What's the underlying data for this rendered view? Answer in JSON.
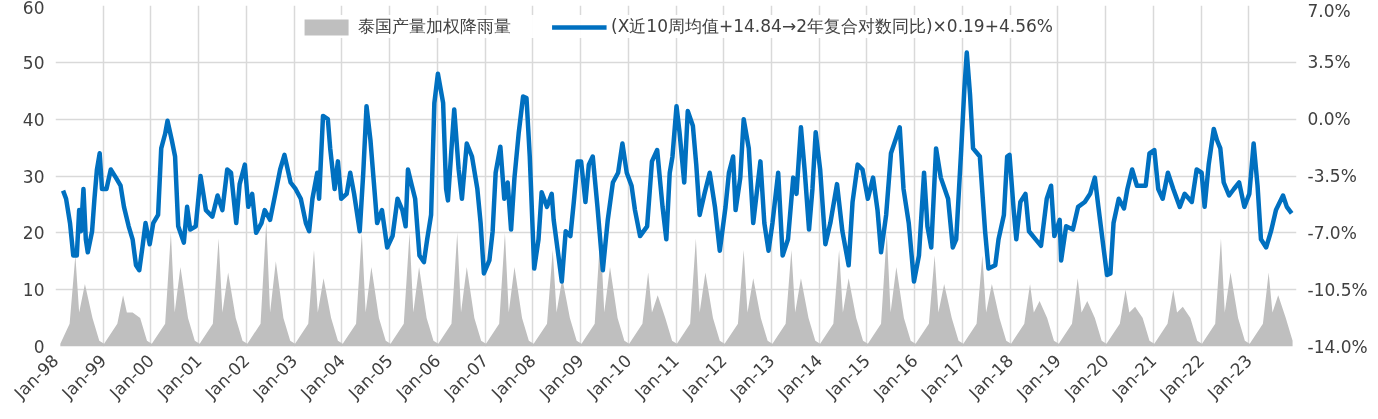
{
  "chart_data": {
    "type": "line",
    "xlim": [
      "1998-01-01",
      "2024-01-01"
    ],
    "xticks": [
      {
        "value": "1998-01",
        "label": "Jan-98"
      },
      {
        "value": "1999-01",
        "label": "Jan-99"
      },
      {
        "value": "2000-01",
        "label": "Jan-00"
      },
      {
        "value": "2001-01",
        "label": "Jan-01"
      },
      {
        "value": "2002-01",
        "label": "Jan-02"
      },
      {
        "value": "2003-01",
        "label": "Jan-03"
      },
      {
        "value": "2004-01",
        "label": "Jan-04"
      },
      {
        "value": "2005-01",
        "label": "Jan-05"
      },
      {
        "value": "2006-01",
        "label": "Jan-06"
      },
      {
        "value": "2007-01",
        "label": "Jan-07"
      },
      {
        "value": "2008-01",
        "label": "Jan-08"
      },
      {
        "value": "2009-01",
        "label": "Jan-09"
      },
      {
        "value": "2010-01",
        "label": "Jan-10"
      },
      {
        "value": "2011-01",
        "label": "Jan-11"
      },
      {
        "value": "2012-01",
        "label": "Jan-12"
      },
      {
        "value": "2013-01",
        "label": "Jan-13"
      },
      {
        "value": "2014-01",
        "label": "Jan-14"
      },
      {
        "value": "2015-01",
        "label": "Jan-15"
      },
      {
        "value": "2016-01",
        "label": "Jan-16"
      },
      {
        "value": "2017-01",
        "label": "Jan-17"
      },
      {
        "value": "2018-01",
        "label": "Jan-18"
      },
      {
        "value": "2019-01",
        "label": "Jan-19"
      },
      {
        "value": "2020-01",
        "label": "Jan-20"
      },
      {
        "value": "2021-01",
        "label": "Jan-21"
      },
      {
        "value": "2022-01",
        "label": "Jan-22"
      },
      {
        "value": "2023-01",
        "label": "Jan-23"
      }
    ],
    "ylim": [
      0,
      60
    ],
    "yticks": [
      0,
      10,
      20,
      30,
      40,
      50,
      60
    ],
    "y2lim": [
      -14,
      7
    ],
    "y2ticks": [
      {
        "value": -14,
        "label": "-14.0%"
      },
      {
        "value": -10.5,
        "label": "-10.5%"
      },
      {
        "value": -7,
        "label": "-7.0%"
      },
      {
        "value": -3.5,
        "label": "-3.5%"
      },
      {
        "value": 0,
        "label": "0.0%"
      },
      {
        "value": 3.5,
        "label": "3.5%"
      },
      {
        "value": 7,
        "label": "7.0%"
      }
    ],
    "grid": true,
    "legend": "top",
    "series": [
      {
        "name": "泰国产量加权降雨量",
        "type": "area",
        "color": "#bfbfbf",
        "x": [
          "1998-02-07",
          "1998-04-19",
          "1998-06-02",
          "1998-07-01",
          "1998-08-14",
          "1998-10-11",
          "1998-12-02",
          "1999-01-08",
          "1999-04-19",
          "1999-06-02",
          "1999-07-01",
          "1999-08-14",
          "1999-10-11",
          "1999-12-02",
          "2000-01-08",
          "2000-04-19",
          "2000-06-02",
          "2000-07-01",
          "2000-08-14",
          "2000-10-11",
          "2000-12-02",
          "2001-01-08",
          "2001-04-19",
          "2001-06-02",
          "2001-07-01",
          "2001-08-14",
          "2001-10-11",
          "2001-12-02",
          "2002-01-08",
          "2002-04-19",
          "2002-06-02",
          "2002-07-01",
          "2002-08-14",
          "2002-10-11",
          "2002-12-02",
          "2003-01-08",
          "2003-04-19",
          "2003-06-02",
          "2003-07-01",
          "2003-08-14",
          "2003-10-11",
          "2003-12-02",
          "2004-01-08",
          "2004-04-19",
          "2004-06-02",
          "2004-07-01",
          "2004-08-14",
          "2004-10-11",
          "2004-12-02",
          "2005-01-08",
          "2005-04-19",
          "2005-06-02",
          "2005-07-01",
          "2005-08-14",
          "2005-10-11",
          "2005-12-02",
          "2006-01-08",
          "2006-04-19",
          "2006-06-02",
          "2006-07-01",
          "2006-08-14",
          "2006-10-11",
          "2006-12-02",
          "2007-01-08",
          "2007-04-19",
          "2007-06-02",
          "2007-07-01",
          "2007-08-14",
          "2007-10-11",
          "2007-12-02",
          "2008-01-08",
          "2008-04-19",
          "2008-06-02",
          "2008-07-01",
          "2008-08-14",
          "2008-10-11",
          "2008-12-02",
          "2009-01-08",
          "2009-04-19",
          "2009-06-02",
          "2009-07-01",
          "2009-08-14",
          "2009-10-11",
          "2009-12-02",
          "2010-01-08",
          "2010-04-19",
          "2010-06-02",
          "2010-07-01",
          "2010-08-14",
          "2010-10-11",
          "2010-12-02",
          "2011-01-08",
          "2011-04-19",
          "2011-06-02",
          "2011-07-01",
          "2011-08-14",
          "2011-10-11",
          "2011-12-02",
          "2012-01-08",
          "2012-04-19",
          "2012-06-02",
          "2012-07-01",
          "2012-08-14",
          "2012-10-11",
          "2012-12-02",
          "2013-01-08",
          "2013-04-19",
          "2013-06-02",
          "2013-07-01",
          "2013-08-14",
          "2013-10-11",
          "2013-12-02",
          "2014-01-08",
          "2014-04-19",
          "2014-06-02",
          "2014-07-01",
          "2014-08-14",
          "2014-10-11",
          "2014-12-02",
          "2015-01-08",
          "2015-04-19",
          "2015-06-02",
          "2015-07-01",
          "2015-08-14",
          "2015-10-11",
          "2015-12-02",
          "2016-01-08",
          "2016-04-19",
          "2016-06-02",
          "2016-07-01",
          "2016-08-14",
          "2016-10-11",
          "2016-12-02",
          "2017-01-08",
          "2017-04-19",
          "2017-06-02",
          "2017-07-01",
          "2017-08-14",
          "2017-10-11",
          "2017-12-02",
          "2018-01-08",
          "2018-04-19",
          "2018-06-02",
          "2018-07-01",
          "2018-08-14",
          "2018-10-11",
          "2018-12-02",
          "2019-01-08",
          "2019-04-19",
          "2019-06-02",
          "2019-07-01",
          "2019-08-14",
          "2019-10-11",
          "2019-12-02",
          "2020-01-08",
          "2020-04-19",
          "2020-06-02",
          "2020-07-01",
          "2020-08-14",
          "2020-10-11",
          "2020-12-02",
          "2021-01-08",
          "2021-04-19",
          "2021-06-02",
          "2021-07-01",
          "2021-08-14",
          "2021-10-11",
          "2021-12-02",
          "2022-01-08",
          "2022-04-19",
          "2022-06-02",
          "2022-07-01",
          "2022-08-14",
          "2022-10-11",
          "2022-12-02",
          "2023-01-08",
          "2023-04-19",
          "2023-06-02",
          "2023-07-01",
          "2023-08-14",
          "2023-10-11",
          "2023-12-02"
        ],
        "values": [
          0.5,
          4,
          16,
          6,
          11,
          5,
          1,
          0.5,
          4,
          9,
          6,
          6,
          5,
          1,
          0.5,
          4,
          20,
          6,
          14,
          5,
          1,
          0.5,
          4,
          19,
          6,
          13,
          5,
          1,
          0.5,
          4,
          22,
          6,
          15,
          5,
          1,
          0.5,
          4,
          17,
          6,
          12,
          5,
          1,
          0.5,
          4,
          20,
          6,
          14,
          5,
          1,
          0.5,
          4,
          20,
          6,
          14,
          5,
          1,
          0.5,
          4,
          20,
          6,
          14,
          5,
          1,
          0.5,
          4,
          20,
          6,
          14,
          5,
          1,
          0.5,
          4,
          17,
          6,
          12,
          5,
          1,
          0.5,
          4,
          20,
          6,
          14,
          5,
          1,
          0.5,
          4,
          13,
          6,
          9,
          5,
          1,
          0.5,
          4,
          19,
          6,
          13,
          5,
          1,
          0.5,
          4,
          17,
          6,
          12,
          5,
          1,
          0.5,
          4,
          17,
          6,
          12,
          5,
          1,
          0.5,
          4,
          17,
          6,
          12,
          5,
          1,
          0.5,
          4,
          20,
          6,
          14,
          5,
          1,
          0.5,
          4,
          16,
          6,
          11,
          5,
          1,
          0.5,
          4,
          16,
          6,
          11,
          5,
          1,
          0.5,
          4,
          11,
          6,
          8,
          5,
          1,
          0.5,
          4,
          12,
          6,
          8,
          5,
          1,
          0.5,
          4,
          10,
          6,
          7,
          5,
          1,
          0.5,
          4,
          10,
          6,
          7,
          5,
          1,
          0.5,
          4,
          19,
          6,
          13,
          5,
          1,
          0.5,
          4,
          13,
          6,
          9,
          5,
          1
        ]
      },
      {
        "name": "(X近10周均值+14.84→2年复合对数同比)×0.19+4.56%",
        "axis": "y2",
        "color": "#0070c0",
        "x": [
          "1998-02-28",
          "1998-03-23",
          "1998-04-22",
          "1998-05-17",
          "1998-06-13",
          "1998-07-01",
          "1998-07-15",
          "1998-08-03",
          "1998-08-21",
          "1998-09-05",
          "1998-10-08",
          "1998-10-26",
          "1998-11-14",
          "1998-12-05",
          "1998-12-23",
          "1999-01-26",
          "1999-02-28",
          "1999-04-08",
          "1999-05-14",
          "1999-06-09",
          "1999-07-15",
          "1999-08-14",
          "1999-09-09",
          "1999-10-04",
          "1999-10-28",
          "1999-11-21",
          "1999-12-23",
          "2000-01-19",
          "2000-02-25",
          "2000-03-20",
          "2000-04-19",
          "2000-05-07",
          "2000-06-09",
          "2000-07-04",
          "2000-07-28",
          "2000-09-09",
          "2000-10-04",
          "2000-10-28",
          "2000-12-09",
          "2001-01-15",
          "2001-02-25",
          "2001-04-15",
          "2001-05-25",
          "2001-07-01",
          "2001-08-07",
          "2001-09-05",
          "2001-10-15",
          "2001-11-10",
          "2001-12-20",
          "2002-01-15",
          "2002-02-14",
          "2002-03-16",
          "2002-04-26",
          "2002-05-21",
          "2002-07-01",
          "2002-08-10",
          "2002-09-16",
          "2002-10-19",
          "2002-12-05",
          "2003-01-12",
          "2003-02-21",
          "2003-04-01",
          "2003-04-26",
          "2003-05-21",
          "2003-06-27",
          "2003-07-11",
          "2003-08-10",
          "2003-09-16",
          "2003-10-04",
          "2003-11-07",
          "2003-12-02",
          "2003-12-27",
          "2004-02-07",
          "2004-03-05",
          "2004-04-04",
          "2004-05-17",
          "2004-06-13",
          "2004-07-08",
          "2004-08-07",
          "2004-09-02",
          "2004-09-27",
          "2004-11-03",
          "2004-12-13",
          "2005-01-23",
          "2005-03-02",
          "2005-04-08",
          "2005-05-03",
          "2005-05-21",
          "2005-06-20",
          "2005-07-15",
          "2005-08-17",
          "2005-09-20",
          "2005-10-15",
          "2005-11-14",
          "2005-12-09",
          "2006-01-05",
          "2006-02-14",
          "2006-03-09",
          "2006-03-23",
          "2006-04-15",
          "2006-05-10",
          "2006-06-13",
          "2006-07-08",
          "2006-08-14",
          "2006-09-23",
          "2006-11-03",
          "2006-11-28",
          "2006-12-23",
          "2007-02-03",
          "2007-02-28",
          "2007-03-23",
          "2007-04-28",
          "2007-05-28",
          "2007-06-23",
          "2007-07-19",
          "2007-08-14",
          "2007-09-16",
          "2007-10-19",
          "2007-11-14",
          "2007-12-09",
          "2008-01-12",
          "2008-02-14",
          "2008-03-09",
          "2008-04-19",
          "2008-05-25",
          "2008-06-09",
          "2008-07-15",
          "2008-08-10",
          "2008-09-09",
          "2008-10-15",
          "2008-11-10",
          "2008-12-09",
          "2009-01-05",
          "2009-02-07",
          "2009-03-05",
          "2009-04-04",
          "2009-05-10",
          "2009-06-20",
          "2009-07-28",
          "2009-09-05",
          "2009-10-15",
          "2009-11-17",
          "2009-12-20",
          "2010-01-26",
          "2010-02-21",
          "2010-04-01",
          "2010-05-25",
          "2010-07-01",
          "2010-08-10",
          "2010-09-20",
          "2010-10-19",
          "2010-11-14",
          "2010-12-05",
          "2011-01-05",
          "2011-01-28",
          "2011-03-05",
          "2011-04-01",
          "2011-05-10",
          "2011-06-05",
          "2011-07-01",
          "2011-08-07",
          "2011-09-16",
          "2011-10-26",
          "2011-12-02",
          "2012-01-15",
          "2012-02-10",
          "2012-03-13",
          "2012-04-01",
          "2012-05-07",
          "2012-06-02",
          "2012-07-11",
          "2012-08-14",
          "2012-09-16",
          "2012-10-08",
          "2012-11-07",
          "2012-12-09",
          "2013-01-08",
          "2013-02-21",
          "2013-03-27",
          "2013-05-07",
          "2013-06-16",
          "2013-07-11",
          "2013-08-14",
          "2013-09-13",
          "2013-10-15",
          "2013-11-10",
          "2013-12-05",
          "2014-01-08",
          "2014-02-17",
          "2014-03-27",
          "2014-05-17",
          "2014-06-27",
          "2014-08-14",
          "2014-09-13",
          "2014-10-22",
          "2014-11-28",
          "2015-01-08",
          "2015-02-17",
          "2015-03-23",
          "2015-04-19",
          "2015-05-28",
          "2015-07-04",
          "2015-09-09",
          "2015-10-08",
          "2015-11-17",
          "2015-12-27",
          "2016-02-03",
          "2016-03-13",
          "2016-04-08",
          "2016-05-07",
          "2016-06-13",
          "2016-07-19",
          "2016-09-13",
          "2016-10-19",
          "2016-11-14",
          "2016-12-23",
          "2017-01-15",
          "2017-02-03",
          "2017-02-28",
          "2017-03-23",
          "2017-05-14",
          "2017-06-23",
          "2017-07-19",
          "2017-09-09",
          "2017-10-04",
          "2017-11-14",
          "2017-12-09",
          "2017-12-27",
          "2018-01-28",
          "2018-02-17",
          "2018-03-20",
          "2018-04-28",
          "2018-05-25",
          "2018-07-15",
          "2018-08-25",
          "2018-10-08",
          "2018-11-10",
          "2018-12-05",
          "2019-01-15",
          "2019-01-26",
          "2019-03-05",
          "2019-04-26",
          "2019-06-05",
          "2019-07-26",
          "2019-09-05",
          "2019-10-11",
          "2019-11-07",
          "2019-12-16",
          "2020-01-12",
          "2020-02-07",
          "2020-03-02",
          "2020-04-11",
          "2020-05-21",
          "2020-06-16",
          "2020-07-22",
          "2020-08-28",
          "2020-11-03",
          "2020-12-02",
          "2021-01-08",
          "2021-02-07",
          "2021-03-13",
          "2021-04-22",
          "2021-06-02",
          "2021-07-22",
          "2021-08-28",
          "2021-10-22",
          "2021-11-28",
          "2022-01-05",
          "2022-01-28",
          "2022-02-28",
          "2022-04-08",
          "2022-05-03",
          "2022-05-28",
          "2022-06-23",
          "2022-08-03",
          "2022-09-09",
          "2022-10-19",
          "2022-11-28",
          "2023-01-05",
          "2023-02-07",
          "2023-03-09",
          "2023-04-04",
          "2023-05-14",
          "2023-06-20",
          "2023-07-28",
          "2023-09-20",
          "2023-10-19",
          "2023-11-25"
        ],
        "values": [
          -4.4,
          -4.9,
          -6.4,
          -8.4,
          -8.4,
          -5.6,
          -6.9,
          -4.3,
          -7.4,
          -8.2,
          -6.9,
          -4.9,
          -3.1,
          -2.1,
          -4.3,
          -4.3,
          -3.1,
          -3.6,
          -4.1,
          -5.4,
          -6.6,
          -7.4,
          -9.0,
          -9.3,
          -7.9,
          -6.4,
          -7.7,
          -6.4,
          -5.9,
          -1.8,
          -0.9,
          -0.1,
          -1.3,
          -2.3,
          -6.6,
          -7.6,
          -5.4,
          -6.8,
          -6.6,
          -3.5,
          -5.6,
          -6.0,
          -4.7,
          -5.6,
          -3.1,
          -3.3,
          -6.4,
          -4.0,
          -2.8,
          -5.4,
          -4.6,
          -7.0,
          -6.4,
          -5.6,
          -6.2,
          -4.6,
          -3.1,
          -2.2,
          -3.9,
          -4.3,
          -4.9,
          -6.4,
          -6.9,
          -4.9,
          -3.3,
          -4.9,
          0.2,
          0.0,
          -1.8,
          -4.3,
          -2.6,
          -4.9,
          -4.6,
          -3.3,
          -4.6,
          -6.9,
          -3.3,
          0.8,
          -1.3,
          -3.9,
          -6.4,
          -5.6,
          -7.9,
          -7.2,
          -4.9,
          -5.6,
          -6.6,
          -3.1,
          -4.1,
          -4.9,
          -8.4,
          -8.8,
          -7.4,
          -5.9,
          1.0,
          2.8,
          1.0,
          -4.3,
          -5.0,
          -2.3,
          0.6,
          -3.1,
          -4.9,
          -1.5,
          -2.3,
          -4.3,
          -6.4,
          -9.5,
          -8.7,
          -6.9,
          -3.3,
          -1.7,
          -4.9,
          -3.9,
          -6.8,
          -3.6,
          -0.8,
          1.4,
          1.3,
          -2.3,
          -9.2,
          -7.4,
          -4.5,
          -5.4,
          -4.6,
          -6.2,
          -8.4,
          -10.0,
          -6.9,
          -7.2,
          -5.1,
          -2.6,
          -2.6,
          -5.1,
          -2.8,
          -2.3,
          -5.4,
          -9.3,
          -6.2,
          -3.9,
          -3.3,
          -1.5,
          -3.3,
          -4.1,
          -5.6,
          -7.2,
          -6.6,
          -2.6,
          -1.9,
          -5.4,
          -7.4,
          -3.3,
          -2.3,
          0.8,
          -0.8,
          -3.9,
          0.5,
          -0.4,
          -2.8,
          -5.9,
          -4.6,
          -3.3,
          -5.4,
          -8.1,
          -5.4,
          -3.3,
          -2.3,
          -5.6,
          -3.6,
          0.0,
          -1.8,
          -6.4,
          -4.1,
          -2.6,
          -6.4,
          -8.1,
          -6.4,
          -3.3,
          -8.4,
          -7.4,
          -3.6,
          -4.6,
          -0.5,
          -3.3,
          -6.8,
          -4.3,
          -0.8,
          -3.1,
          -7.7,
          -6.4,
          -4.0,
          -6.9,
          -9.0,
          -5.1,
          -2.8,
          -3.1,
          -4.9,
          -3.6,
          -5.6,
          -8.2,
          -5.9,
          -2.1,
          -0.5,
          -4.3,
          -6.4,
          -10.0,
          -8.4,
          -3.3,
          -6.6,
          -7.9,
          -1.8,
          -3.6,
          -4.9,
          -7.9,
          -7.4,
          -1.8,
          1.8,
          4.1,
          1.5,
          -1.8,
          -2.3,
          -6.9,
          -9.2,
          -9.0,
          -7.4,
          -5.9,
          -2.3,
          -2.2,
          -5.6,
          -7.4,
          -5.1,
          -4.6,
          -6.9,
          -7.4,
          -7.8,
          -4.9,
          -4.1,
          -7.2,
          -6.2,
          -8.7,
          -6.6,
          -6.8,
          -5.4,
          -5.1,
          -4.6,
          -3.6,
          -5.4,
          -7.9,
          -9.6,
          -9.5,
          -6.4,
          -4.9,
          -5.5,
          -4.3,
          -3.1,
          -4.1,
          -4.1,
          -2.1,
          -1.9,
          -4.3,
          -4.9,
          -3.3,
          -4.3,
          -5.4,
          -4.6,
          -5.1,
          -3.1,
          -3.3,
          -5.4,
          -2.8,
          -0.6,
          -1.3,
          -1.8,
          -3.9,
          -4.7,
          -4.3,
          -3.9,
          -5.4,
          -4.6,
          -1.5,
          -4.1,
          -7.4,
          -7.9,
          -6.9,
          -5.6,
          -4.7,
          -5.4,
          -5.8
        ]
      }
    ]
  }
}
